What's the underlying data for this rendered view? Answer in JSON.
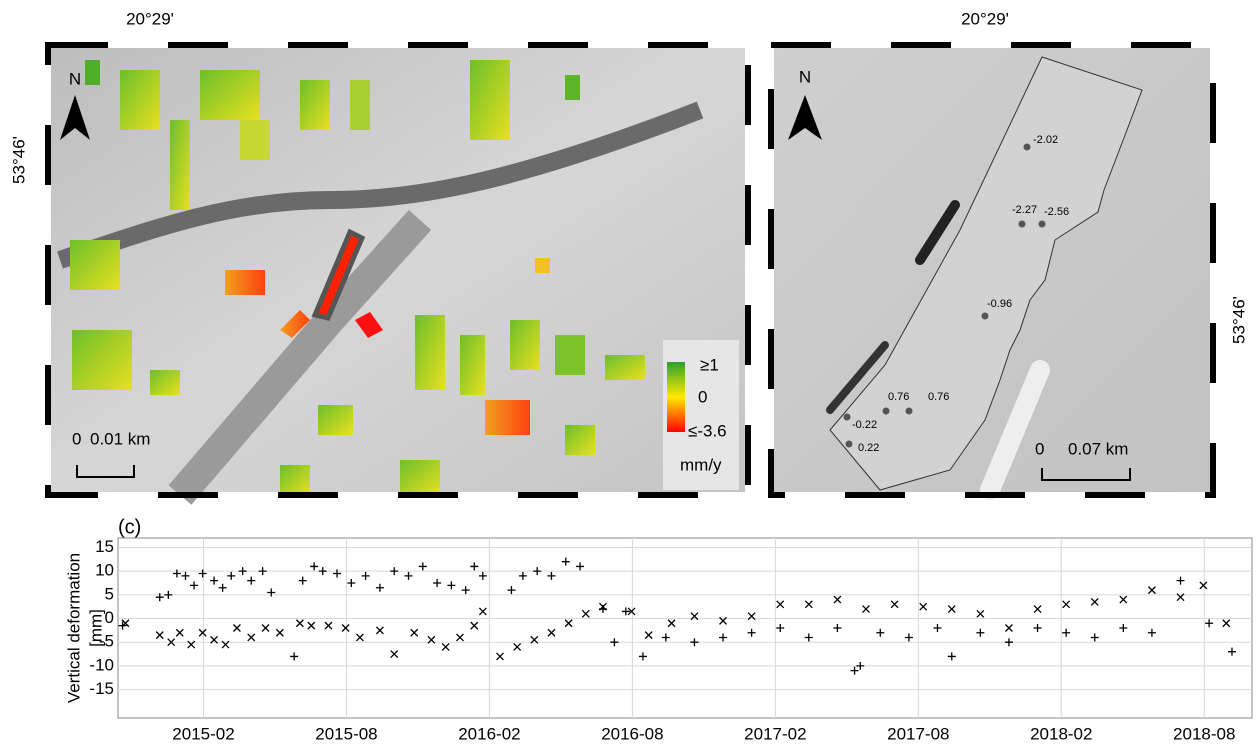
{
  "maps": {
    "top_longitude_left": "20°29'",
    "top_longitude_right": "20°29'",
    "latitude_left": "53°46'",
    "latitude_right": "53°46'",
    "north_left": "N",
    "north_right": "N",
    "legend": {
      "top": "≥1",
      "middle": "0",
      "bottom": "≤-3.6",
      "unit": "mm/y"
    },
    "scale_left": {
      "start": "0",
      "end": "0.01 km"
    },
    "scale_right": {
      "start": "0",
      "end": "0.07 km"
    },
    "points": [
      -2.02,
      -2.27,
      -2.56,
      -0.96,
      0.76,
      0.76,
      -0.22,
      0.22
    ]
  },
  "chart_data": {
    "type": "scatter",
    "panel_label": "(c)",
    "ylabel": [
      "Vertical deformation",
      "[mm]"
    ],
    "xlim": [
      2014.784,
      2018.75
    ],
    "ylim": [
      -21,
      17
    ],
    "grid": true,
    "xticks": [
      {
        "value": 2015.083,
        "label": "2015-02"
      },
      {
        "value": 2015.583,
        "label": "2015-08"
      },
      {
        "value": 2016.083,
        "label": "2016-02"
      },
      {
        "value": 2016.583,
        "label": "2016-08"
      },
      {
        "value": 2017.083,
        "label": "2017-02"
      },
      {
        "value": 2017.583,
        "label": "2017-08"
      },
      {
        "value": 2018.083,
        "label": "2018-02"
      },
      {
        "value": 2018.583,
        "label": "2018-08"
      }
    ],
    "yticks": [
      15,
      10,
      5,
      0,
      -5,
      -10,
      -15
    ],
    "series": [
      {
        "marker": "plus",
        "color": "#000000",
        "x": [
          2014.8,
          2014.93,
          2014.96,
          2014.99,
          2015.02,
          2015.05,
          2015.08,
          2015.12,
          2015.15,
          2015.18,
          2015.22,
          2015.25,
          2015.29,
          2015.32,
          2015.4,
          2015.43,
          2015.47,
          2015.5,
          2015.55,
          2015.6,
          2015.65,
          2015.7,
          2015.75,
          2015.8,
          2015.85,
          2015.9,
          2015.95,
          2016.0,
          2016.03,
          2016.06,
          2016.16,
          2016.2,
          2016.25,
          2016.3,
          2016.35,
          2016.4,
          2016.48,
          2016.52,
          2016.56,
          2016.62,
          2016.7,
          2016.8,
          2016.9,
          2017.0,
          2017.1,
          2017.2,
          2017.3,
          2017.36,
          2017.38,
          2017.45,
          2017.55,
          2017.65,
          2017.7,
          2017.8,
          2017.9,
          2018.0,
          2018.1,
          2018.2,
          2018.3,
          2018.4,
          2018.5,
          2018.6,
          2018.68
        ],
        "values": [
          -1.5,
          4.5,
          5,
          9.5,
          9,
          7,
          9.5,
          8,
          6.5,
          9,
          10,
          8,
          10,
          5.5,
          -8,
          8,
          11,
          10,
          9.5,
          7.5,
          9,
          6.5,
          10,
          9,
          11,
          7.5,
          7,
          6,
          11,
          9,
          6,
          9,
          10,
          9,
          12,
          11,
          2,
          -5,
          1.5,
          -8,
          -4,
          -5,
          -4,
          -3,
          -2,
          -4,
          -2,
          -11,
          -10,
          -3,
          -4,
          -2,
          -8,
          -3,
          -5,
          -2,
          -3,
          -4,
          -2,
          -3,
          8,
          -1,
          -7
        ]
      },
      {
        "marker": "cross",
        "color": "#000000",
        "x": [
          2014.81,
          2014.93,
          2014.97,
          2015.0,
          2015.04,
          2015.08,
          2015.12,
          2015.16,
          2015.2,
          2015.25,
          2015.3,
          2015.35,
          2015.42,
          2015.46,
          2015.52,
          2015.58,
          2015.63,
          2015.7,
          2015.75,
          2015.82,
          2015.88,
          2015.93,
          2015.98,
          2016.03,
          2016.06,
          2016.12,
          2016.18,
          2016.24,
          2016.3,
          2016.36,
          2016.42,
          2016.48,
          2016.58,
          2016.64,
          2016.72,
          2016.8,
          2016.9,
          2017.0,
          2017.1,
          2017.2,
          2017.3,
          2017.4,
          2017.5,
          2017.6,
          2017.7,
          2017.8,
          2017.9,
          2018.0,
          2018.1,
          2018.2,
          2018.3,
          2018.4,
          2018.5,
          2018.58,
          2018.66
        ],
        "values": [
          -1,
          -3.5,
          -5,
          -3,
          -5.5,
          -3,
          -4.5,
          -5.5,
          -2,
          -4,
          -2,
          -3,
          -1,
          -1.5,
          -1.5,
          -2,
          -4,
          -2.5,
          -7.5,
          -3,
          -4.5,
          -6,
          -4,
          -1.5,
          1.5,
          -8,
          -6,
          -4.5,
          -3,
          -1,
          1,
          2.5,
          1.5,
          -3.5,
          -1,
          0.5,
          -0.5,
          0.5,
          3,
          3,
          4,
          2,
          3,
          2.5,
          2,
          1,
          -2,
          2,
          3,
          3.5,
          4,
          6,
          4.5,
          7,
          -1
        ]
      }
    ]
  }
}
